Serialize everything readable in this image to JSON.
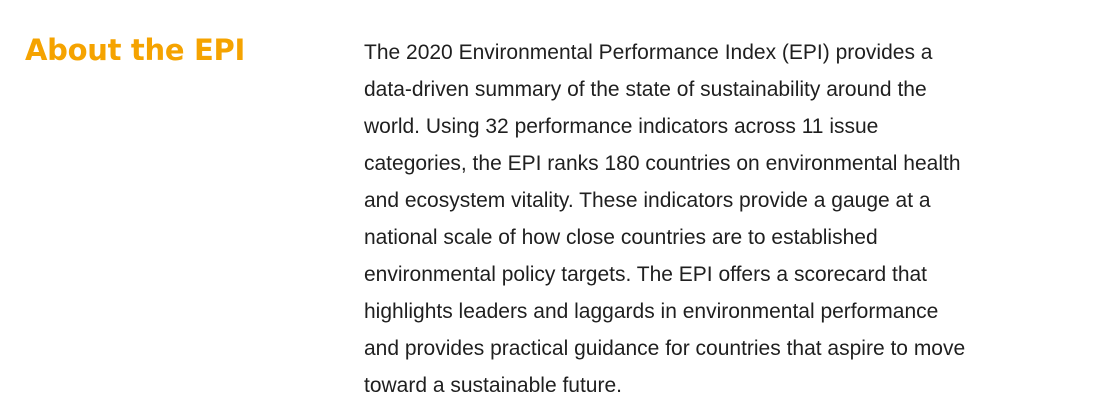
{
  "about": {
    "heading": "About the EPI",
    "body_lines": [
      "The 2020 Environmental Performance Index (EPI) provides a",
      "data-driven summary of the state of sustainability around the",
      "world. Using 32 performance indicators across 11 issue",
      "categories, the EPI ranks 180 countries on environmental health",
      "and ecosystem vitality. These indicators provide a gauge at a",
      "national scale of how close countries are to established",
      "environmental policy targets. The EPI offers a scorecard that",
      "highlights leaders and laggards in environmental performance",
      "and provides practical guidance for countries that aspire to move",
      "toward a sustainable future."
    ]
  },
  "colors": {
    "heading": "#f5a300",
    "body_text": "#1f1f1f",
    "background": "#ffffff"
  }
}
